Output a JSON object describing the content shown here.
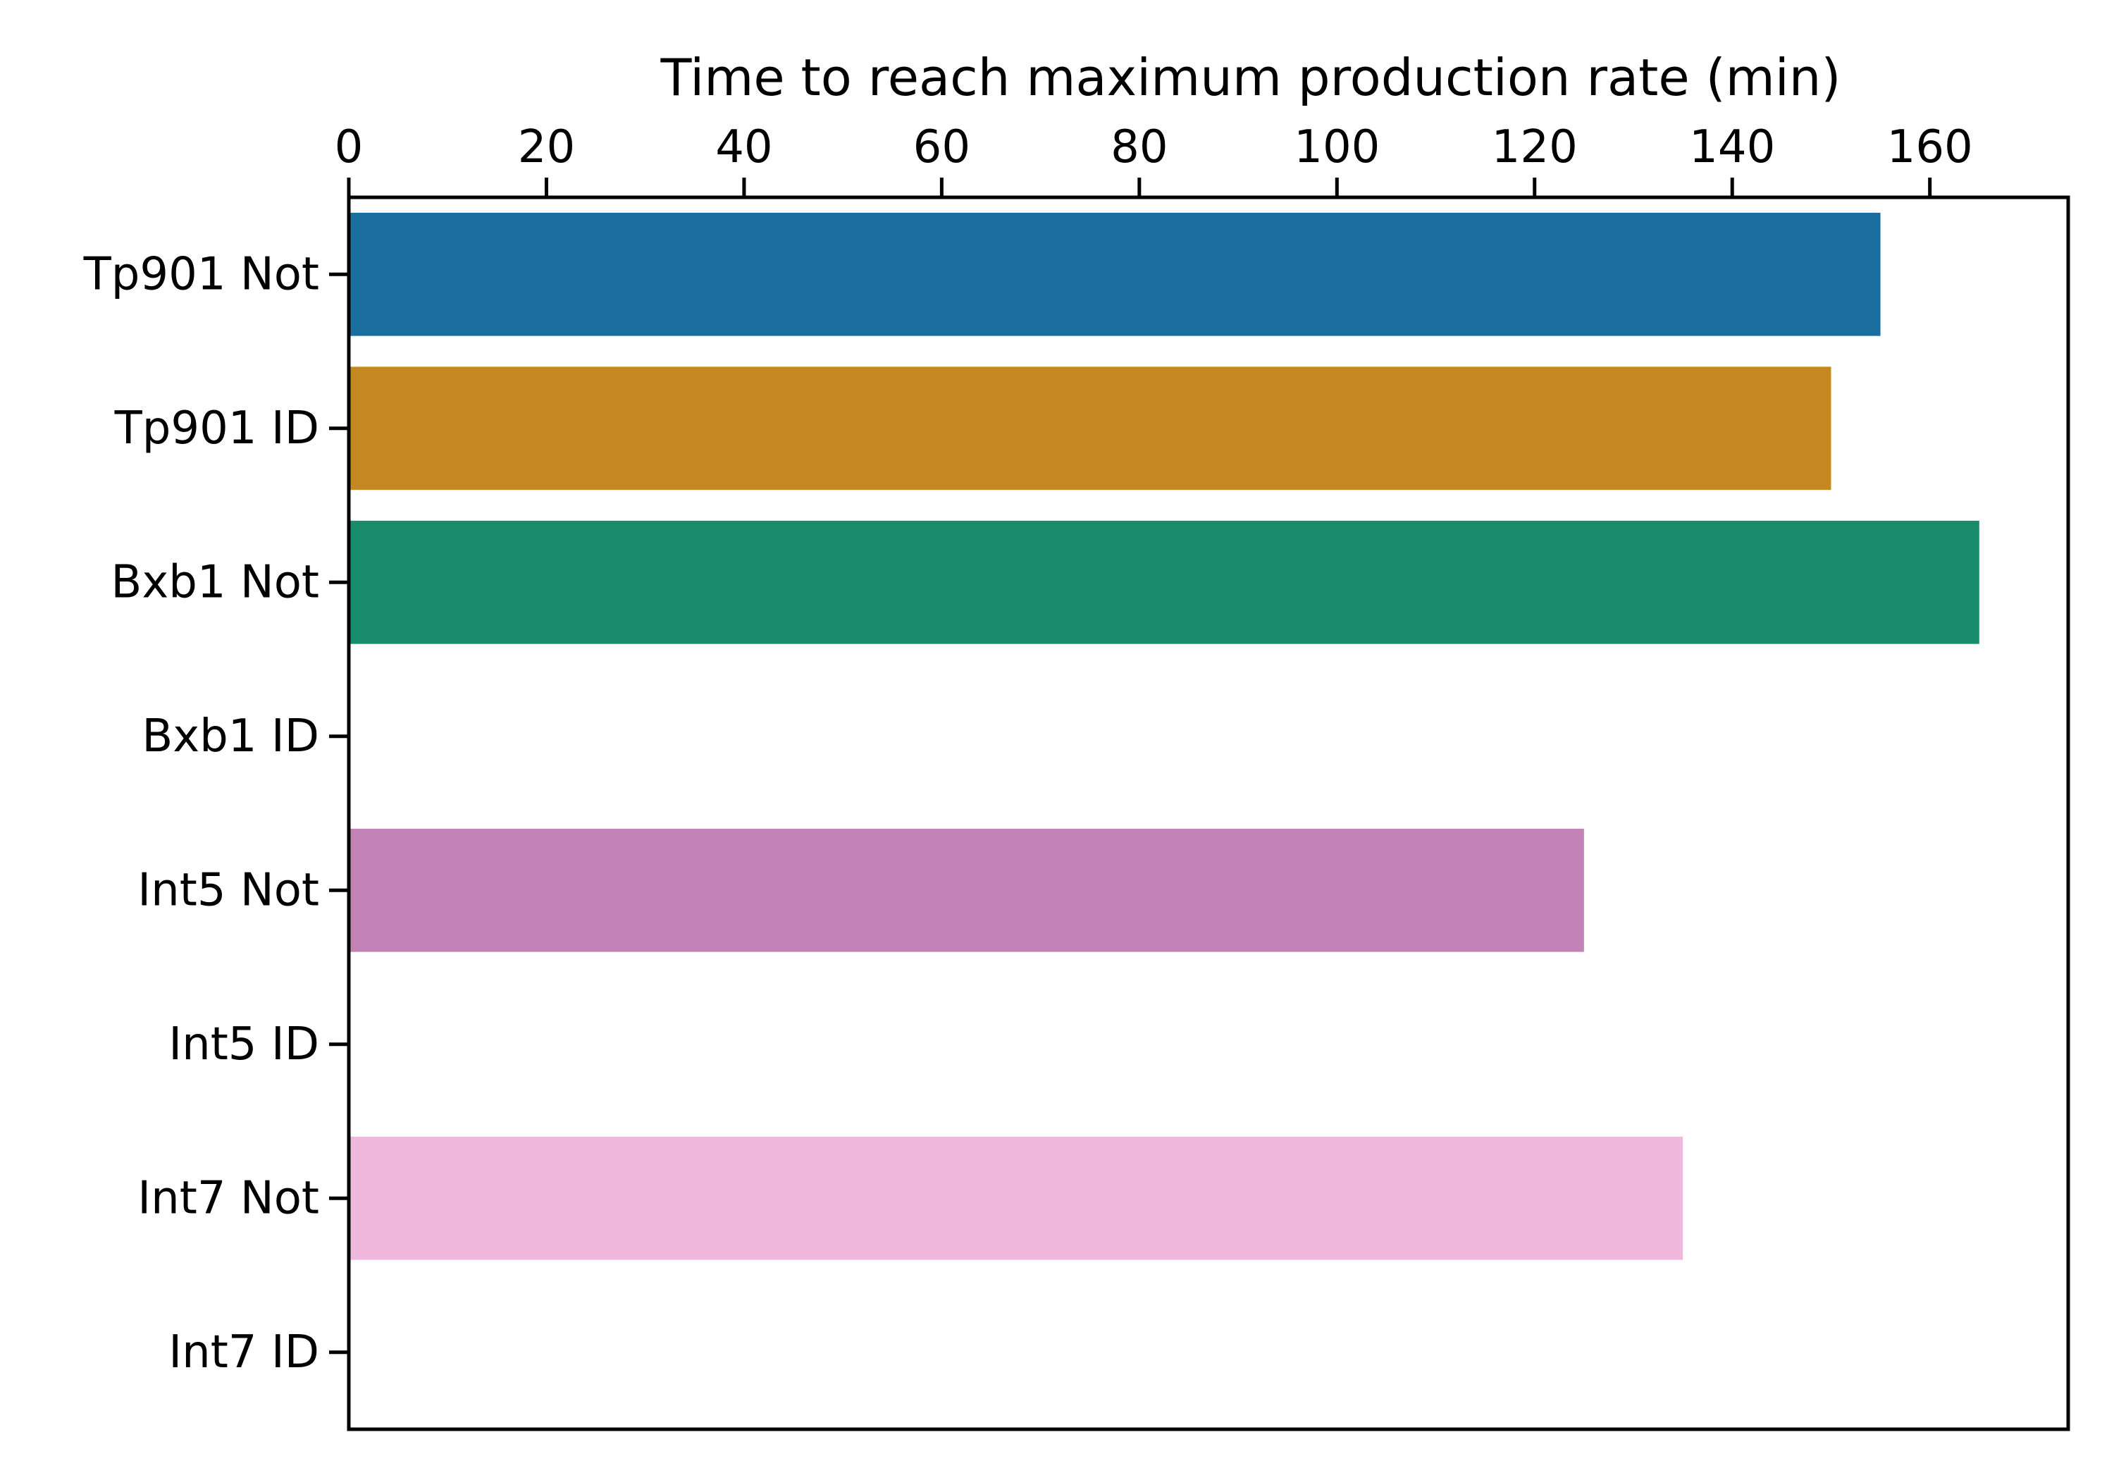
{
  "chart_data": {
    "type": "bar",
    "orientation": "horizontal",
    "xlabel": "Time to reach maximum production rate (min)",
    "xaxis_position": "top",
    "xlim": [
      0,
      174
    ],
    "xticks": [
      0,
      20,
      40,
      60,
      80,
      100,
      120,
      140,
      160
    ],
    "categories": [
      "Tp901 Not",
      "Tp901 ID",
      "Bxb1 Not",
      "Bxb1 ID",
      "Int5 Not",
      "Int5 ID",
      "Int7 Not",
      "Int7 ID"
    ],
    "values": [
      155,
      150,
      165,
      0,
      125,
      0,
      135,
      0
    ],
    "colors": [
      "#1a6e9e",
      "#c38820",
      "#188c6b",
      "#c75e2a",
      "#c382b5",
      "#c87c4a",
      "#f1b8de",
      "#888888"
    ],
    "grid": false,
    "legend": "none"
  }
}
